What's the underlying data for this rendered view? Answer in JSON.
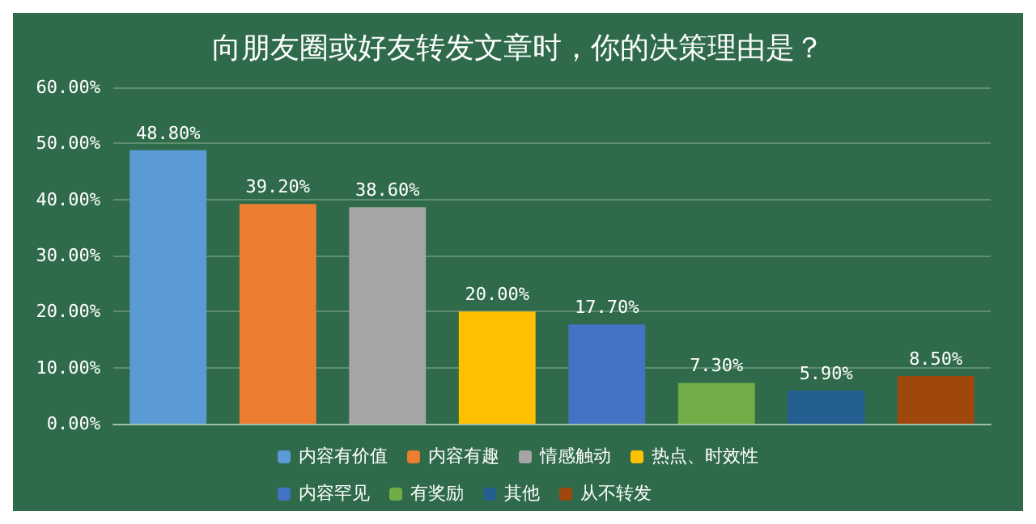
{
  "chart_data": {
    "type": "bar",
    "title": "向朋友圈或好友转发文章时，你的决策理由是？",
    "categories": [
      null,
      null,
      null,
      null,
      null,
      null,
      null,
      null
    ],
    "series": [
      {
        "name": "内容有价值",
        "color": "#5b9bd5",
        "values": [
          48.8,
          null,
          null,
          null,
          null,
          null,
          null,
          null
        ],
        "value_labels": [
          "48.80%",
          null,
          null,
          null,
          null,
          null,
          null,
          null
        ]
      },
      {
        "name": "内容有趣",
        "color": "#ed7d31",
        "values": [
          null,
          39.2,
          null,
          null,
          null,
          null,
          null,
          null
        ],
        "value_labels": [
          null,
          "39.20%",
          null,
          null,
          null,
          null,
          null,
          null
        ]
      },
      {
        "name": "情感触动",
        "color": "#a5a5a5",
        "values": [
          null,
          null,
          38.6,
          null,
          null,
          null,
          null,
          null
        ],
        "value_labels": [
          null,
          null,
          "38.60%",
          null,
          null,
          null,
          null,
          null
        ]
      },
      {
        "name": "热点、时效性",
        "color": "#ffc000",
        "values": [
          null,
          null,
          null,
          20.0,
          null,
          null,
          null,
          null
        ],
        "value_labels": [
          null,
          null,
          null,
          "20.00%",
          null,
          null,
          null,
          null
        ]
      },
      {
        "name": "内容罕见",
        "color": "#4472c4",
        "values": [
          null,
          null,
          null,
          null,
          17.7,
          null,
          null,
          null
        ],
        "value_labels": [
          null,
          null,
          null,
          null,
          "17.70%",
          null,
          null,
          null
        ]
      },
      {
        "name": "有奖励",
        "color": "#70ad47",
        "values": [
          null,
          null,
          null,
          null,
          null,
          7.3,
          null,
          null
        ],
        "value_labels": [
          null,
          null,
          null,
          null,
          null,
          "7.30%",
          null,
          null
        ]
      },
      {
        "name": "其他",
        "color": "#255e91",
        "values": [
          null,
          null,
          null,
          null,
          null,
          null,
          5.9,
          null
        ],
        "value_labels": [
          null,
          null,
          null,
          null,
          null,
          null,
          "5.90%",
          null
        ]
      },
      {
        "name": "从不转发",
        "color": "#9e480e",
        "values": [
          null,
          null,
          null,
          null,
          null,
          null,
          null,
          8.5
        ],
        "value_labels": [
          null,
          null,
          null,
          null,
          null,
          null,
          null,
          "8.50%"
        ]
      }
    ],
    "stacked": true,
    "ylim": [
      0,
      60
    ],
    "yticks": [
      {
        "value": 0,
        "label": "0.00%"
      },
      {
        "value": 10,
        "label": "10.00%"
      },
      {
        "value": 20,
        "label": "20.00%"
      },
      {
        "value": 30,
        "label": "30.00%"
      },
      {
        "value": 40,
        "label": "40.00%"
      },
      {
        "value": 50,
        "label": "50.00%"
      },
      {
        "value": 60,
        "label": "60.00%"
      }
    ],
    "grid": "y",
    "legend": "bottom",
    "tick_labels": "y"
  }
}
